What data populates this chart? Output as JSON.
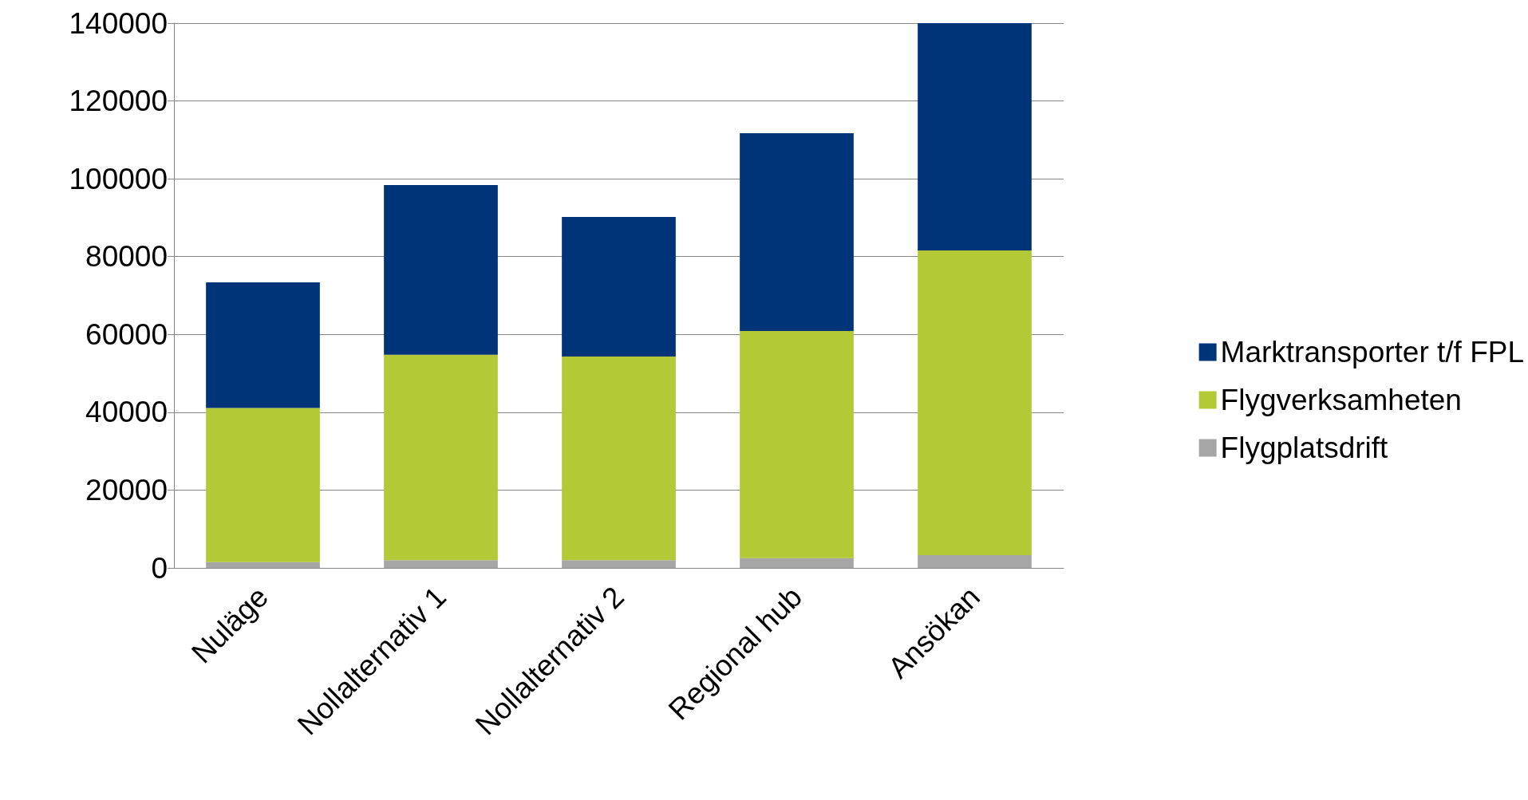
{
  "chart_data": {
    "type": "bar",
    "stacked": true,
    "categories": [
      "Nuläge",
      "Nollalternativ 1",
      "Nollalternativ 2",
      "Regional hub",
      "Ansökan"
    ],
    "series": [
      {
        "name": "Flygplatsdrift",
        "color": "#a6a6a6",
        "values": [
          1500,
          2000,
          2000,
          2500,
          3300
        ]
      },
      {
        "name": "Flygverksamheten",
        "color": "#b3c935",
        "values": [
          39600,
          52800,
          52300,
          58400,
          78300
        ]
      },
      {
        "name": "Marktransporter t/f FPL",
        "color": "#003478",
        "values": [
          32300,
          43600,
          35900,
          50800,
          58400
        ]
      }
    ],
    "ylim": [
      0,
      140000
    ],
    "yticks": [
      0,
      20000,
      40000,
      60000,
      80000,
      100000,
      120000,
      140000
    ],
    "grid": "y",
    "legend": "right"
  }
}
